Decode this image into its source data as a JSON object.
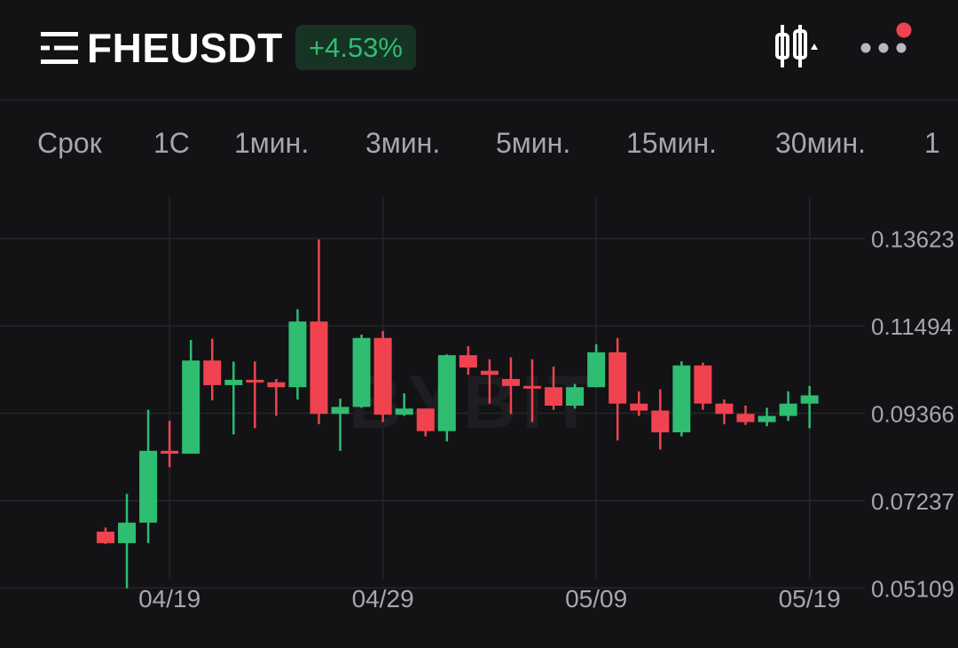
{
  "header": {
    "symbol": "FHEUSDT",
    "change": "+4.53%",
    "icons": {
      "menu": "menu-icon",
      "chart_type": "candlestick-icon",
      "more": "more-dots-icon"
    },
    "colors": {
      "up": "#2fbd72",
      "down": "#f0434f",
      "badge_bg": "#173323",
      "notification": "#f0434f"
    }
  },
  "timeframes": [
    "Срок",
    "1С",
    "1мин.",
    "3мин.",
    "5мин.",
    "15мин.",
    "30мин.",
    "1"
  ],
  "watermark": "BYBIT",
  "chart_data": {
    "type": "candlestick",
    "title": "",
    "x_ticks": [
      "04/19",
      "04/29",
      "05/09",
      "05/19"
    ],
    "y_ticks": [
      "0.13623",
      "0.11494",
      "0.09366",
      "0.07237",
      "0.05109"
    ],
    "ylim": [
      0.049,
      0.1433
    ],
    "grid": true,
    "up_color": "#2fbd72",
    "down_color": "#f0434f",
    "candles": [
      {
        "date": "04/16",
        "open": 0.0648,
        "high": 0.0658,
        "low": 0.0618,
        "close": 0.062
      },
      {
        "date": "04/17",
        "open": 0.062,
        "high": 0.074,
        "low": 0.051,
        "close": 0.067
      },
      {
        "date": "04/18",
        "open": 0.067,
        "high": 0.0945,
        "low": 0.062,
        "close": 0.0845
      },
      {
        "date": "04/19",
        "open": 0.0845,
        "high": 0.0918,
        "low": 0.0805,
        "close": 0.0838
      },
      {
        "date": "04/20",
        "open": 0.0838,
        "high": 0.1115,
        "low": 0.0838,
        "close": 0.1065
      },
      {
        "date": "04/21",
        "open": 0.1065,
        "high": 0.1118,
        "low": 0.0968,
        "close": 0.1005
      },
      {
        "date": "04/22",
        "open": 0.1005,
        "high": 0.1062,
        "low": 0.0885,
        "close": 0.1018
      },
      {
        "date": "04/23",
        "open": 0.1018,
        "high": 0.1063,
        "low": 0.09,
        "close": 0.1012
      },
      {
        "date": "04/24",
        "open": 0.1012,
        "high": 0.102,
        "low": 0.093,
        "close": 0.1
      },
      {
        "date": "04/25",
        "open": 0.1,
        "high": 0.119,
        "low": 0.097,
        "close": 0.116
      },
      {
        "date": "04/26",
        "open": 0.116,
        "high": 0.136,
        "low": 0.091,
        "close": 0.0935
      },
      {
        "date": "04/27",
        "open": 0.0935,
        "high": 0.0972,
        "low": 0.0845,
        "close": 0.0952
      },
      {
        "date": "04/28",
        "open": 0.0952,
        "high": 0.1128,
        "low": 0.095,
        "close": 0.112
      },
      {
        "date": "04/29",
        "open": 0.112,
        "high": 0.1137,
        "low": 0.0915,
        "close": 0.0933
      },
      {
        "date": "04/30",
        "open": 0.0933,
        "high": 0.0985,
        "low": 0.093,
        "close": 0.0948
      },
      {
        "date": "05/01",
        "open": 0.0948,
        "high": 0.0948,
        "low": 0.088,
        "close": 0.0893
      },
      {
        "date": "05/02",
        "open": 0.0893,
        "high": 0.108,
        "low": 0.0868,
        "close": 0.1078
      },
      {
        "date": "05/03",
        "open": 0.1078,
        "high": 0.11,
        "low": 0.103,
        "close": 0.1048
      },
      {
        "date": "05/04",
        "open": 0.104,
        "high": 0.1068,
        "low": 0.096,
        "close": 0.103
      },
      {
        "date": "05/05",
        "open": 0.102,
        "high": 0.1073,
        "low": 0.0935,
        "close": 0.1003
      },
      {
        "date": "05/06",
        "open": 0.1003,
        "high": 0.1068,
        "low": 0.0915,
        "close": 0.1
      },
      {
        "date": "05/07",
        "open": 0.1,
        "high": 0.105,
        "low": 0.0945,
        "close": 0.0955
      },
      {
        "date": "05/08",
        "open": 0.0955,
        "high": 0.1008,
        "low": 0.0948,
        "close": 0.1
      },
      {
        "date": "05/09",
        "open": 0.1,
        "high": 0.1105,
        "low": 0.1,
        "close": 0.1085
      },
      {
        "date": "05/10",
        "open": 0.1085,
        "high": 0.112,
        "low": 0.087,
        "close": 0.096
      },
      {
        "date": "05/11",
        "open": 0.096,
        "high": 0.099,
        "low": 0.093,
        "close": 0.0943
      },
      {
        "date": "05/12",
        "open": 0.0943,
        "high": 0.0995,
        "low": 0.0848,
        "close": 0.089
      },
      {
        "date": "05/13",
        "open": 0.089,
        "high": 0.1063,
        "low": 0.088,
        "close": 0.1053
      },
      {
        "date": "05/14",
        "open": 0.1053,
        "high": 0.106,
        "low": 0.0945,
        "close": 0.096
      },
      {
        "date": "05/15",
        "open": 0.096,
        "high": 0.097,
        "low": 0.091,
        "close": 0.0935
      },
      {
        "date": "05/16",
        "open": 0.0935,
        "high": 0.0955,
        "low": 0.0908,
        "close": 0.0915
      },
      {
        "date": "05/17",
        "open": 0.0915,
        "high": 0.095,
        "low": 0.0905,
        "close": 0.093
      },
      {
        "date": "05/18",
        "open": 0.093,
        "high": 0.099,
        "low": 0.0918,
        "close": 0.096
      },
      {
        "date": "05/19",
        "open": 0.096,
        "high": 0.1003,
        "low": 0.09,
        "close": 0.098
      }
    ]
  }
}
